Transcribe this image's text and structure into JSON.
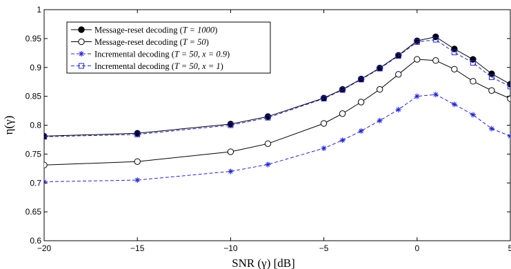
{
  "chart_data": {
    "type": "line",
    "xlabel": "SNR (γ) [dB]",
    "ylabel": "η(γ)",
    "xlim": [
      -20,
      5
    ],
    "ylim": [
      0.6,
      1.0
    ],
    "xticks": [
      -20,
      -15,
      -10,
      -5,
      0,
      5
    ],
    "yticks": [
      0.6,
      0.65,
      0.7,
      0.75,
      0.8,
      0.85,
      0.9,
      0.95,
      1.0
    ],
    "xtick_labels": [
      "−20",
      "−15",
      "−10",
      "−5",
      "0",
      "5"
    ],
    "ytick_labels": [
      "0.6",
      "0.65",
      "0.7",
      "0.75",
      "0.8",
      "0.85",
      "0.9",
      "0.95",
      "1"
    ],
    "grid": false,
    "legend_position": "top-left",
    "series": [
      {
        "name": "Message-reset decoding (T = 1000)",
        "color": "#000000",
        "line": "solid",
        "marker": "filled-circle",
        "x": [
          -20,
          -15,
          -10,
          -8,
          -5,
          -4,
          -3,
          -2,
          -1,
          0,
          1,
          2,
          3,
          4,
          5
        ],
        "y": [
          0.781,
          0.786,
          0.802,
          0.815,
          0.847,
          0.862,
          0.88,
          0.899,
          0.921,
          0.946,
          0.953,
          0.932,
          0.914,
          0.889,
          0.871
        ]
      },
      {
        "name": "Message-reset decoding (T = 50)",
        "color": "#000000",
        "line": "solid",
        "marker": "open-circle",
        "x": [
          -20,
          -15,
          -10,
          -8,
          -5,
          -4,
          -3,
          -2,
          -1,
          0,
          1,
          2,
          3,
          4,
          5
        ],
        "y": [
          0.731,
          0.737,
          0.754,
          0.768,
          0.803,
          0.82,
          0.84,
          0.862,
          0.888,
          0.914,
          0.912,
          0.897,
          0.876,
          0.86,
          0.846
        ]
      },
      {
        "name": "Incremental decoding (T = 50, x = 0.9)",
        "color": "#2222dd",
        "line": "dashed",
        "marker": "asterisk",
        "x": [
          -20,
          -15,
          -10,
          -8,
          -5,
          -4,
          -3,
          -2,
          -1,
          0,
          1,
          2,
          3,
          4,
          5
        ],
        "y": [
          0.702,
          0.705,
          0.72,
          0.732,
          0.76,
          0.774,
          0.79,
          0.808,
          0.827,
          0.85,
          0.853,
          0.836,
          0.818,
          0.794,
          0.781
        ]
      },
      {
        "name": "Incremental decoding (T = 50, x = 1)",
        "color": "#2222dd",
        "line": "dashed",
        "marker": "open-square",
        "x": [
          -20,
          -15,
          -10,
          -8,
          -5,
          -4,
          -3,
          -2,
          -1,
          0,
          1,
          2,
          3,
          4,
          5
        ],
        "y": [
          0.78,
          0.784,
          0.8,
          0.813,
          0.846,
          0.861,
          0.879,
          0.898,
          0.92,
          0.944,
          0.948,
          0.926,
          0.908,
          0.883,
          0.867
        ]
      }
    ],
    "legend_entries": [
      {
        "prefix": "Message-reset decoding (",
        "math": "T = 1000",
        "suffix": ")"
      },
      {
        "prefix": "Message-reset decoding (",
        "math": "T = 50",
        "suffix": ")"
      },
      {
        "prefix": "Incremental decoding (",
        "math": "T = 50, x = 0.9",
        "suffix": ")"
      },
      {
        "prefix": "Incremental decoding (",
        "math": "T = 50, x = 1",
        "suffix": ")"
      }
    ]
  }
}
